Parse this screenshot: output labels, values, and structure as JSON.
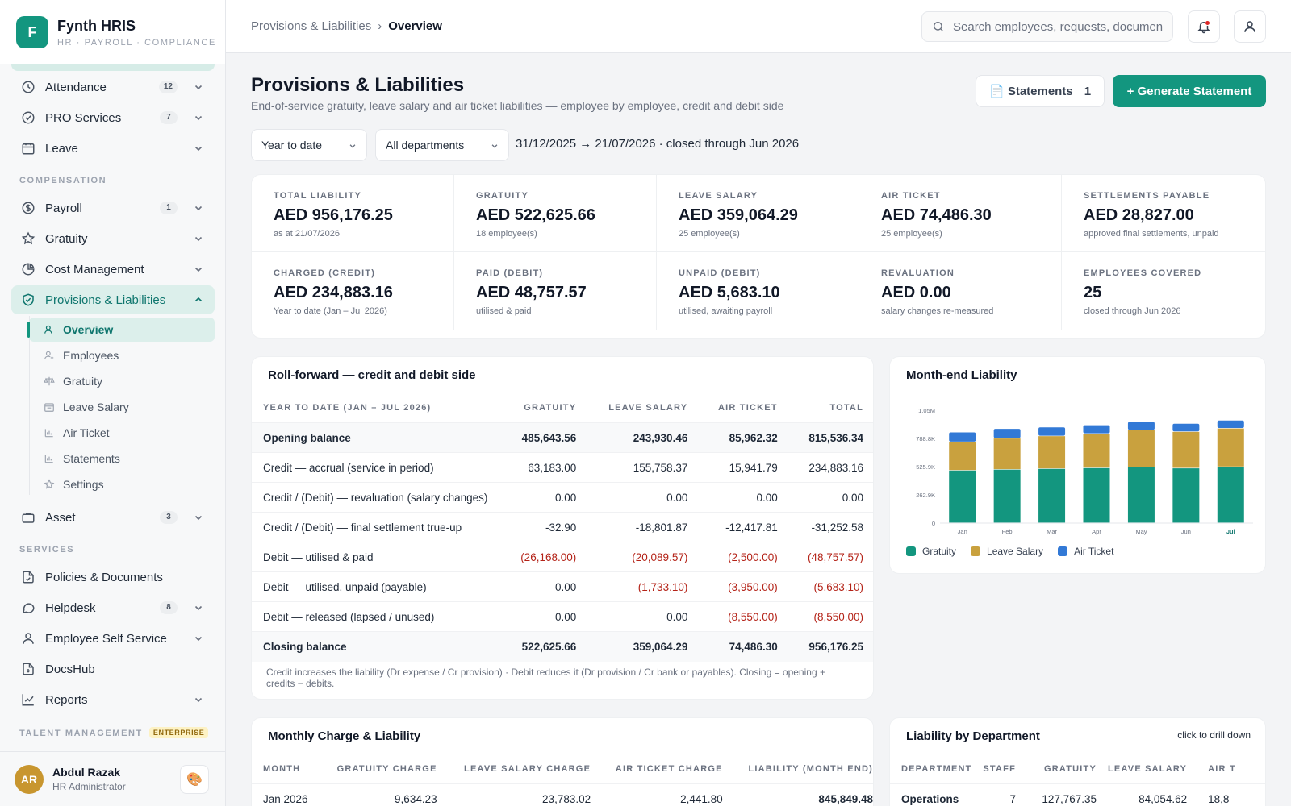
{
  "brand": {
    "logo_letter": "F",
    "name": "Fynth HRIS",
    "subtitle": "HR · PAYROLL · COMPLIANCE"
  },
  "sidebar": {
    "items": [
      {
        "label": "Attendance",
        "badge": "12",
        "icon": "clock-icon"
      },
      {
        "label": "PRO Services",
        "badge": "7",
        "icon": "check-circle-icon"
      },
      {
        "label": "Leave",
        "icon": "calendar-icon"
      },
      {
        "label": "Payroll",
        "badge": "1",
        "icon": "dollar-icon"
      },
      {
        "label": "Gratuity",
        "icon": "star-icon"
      },
      {
        "label": "Cost Management",
        "icon": "pie-icon"
      },
      {
        "label": "Provisions & Liabilities",
        "icon": "shield-check-icon",
        "active": true
      },
      {
        "label": "Asset",
        "badge": "3",
        "icon": "briefcase-icon"
      },
      {
        "label": "Policies & Documents",
        "icon": "file-check-icon"
      },
      {
        "label": "Helpdesk",
        "badge": "8",
        "icon": "chat-icon"
      },
      {
        "label": "Employee Self Service",
        "icon": "user-icon"
      },
      {
        "label": "DocsHub",
        "icon": "file-icon"
      },
      {
        "label": "Reports",
        "icon": "chart-line-icon"
      }
    ],
    "sections": {
      "compensation": "COMPENSATION",
      "services": "SERVICES",
      "talent": "TALENT MANAGEMENT",
      "talent_badge": "ENTERPRISE"
    },
    "subitems": [
      {
        "label": "Overview",
        "active": true
      },
      {
        "label": "Employees"
      },
      {
        "label": "Gratuity"
      },
      {
        "label": "Leave Salary"
      },
      {
        "label": "Air Ticket"
      },
      {
        "label": "Statements"
      },
      {
        "label": "Settings"
      }
    ],
    "user": {
      "initials": "AR",
      "name": "Abdul Razak",
      "role": "HR Administrator"
    }
  },
  "topbar": {
    "breadcrumb": [
      "Provisions & Liabilities",
      "Overview"
    ],
    "search_placeholder": "Search employees, requests, documents"
  },
  "page": {
    "title": "Provisions & Liabilities",
    "subtitle": "End-of-service gratuity, leave salary and air ticket liabilities — employee by employee, credit and debit side",
    "statements_label": "📄 Statements",
    "statements_count": "1",
    "generate_label": "+ Generate Statement",
    "period_select": "Year to date",
    "dept_select": "All departments",
    "range_text": "31/12/2025 → 21/07/2026 · closed through Jun 2026"
  },
  "kpis": [
    {
      "label": "TOTAL LIABILITY",
      "value": "AED 956,176.25",
      "sub": "as at 21/07/2026"
    },
    {
      "label": "GRATUITY",
      "value": "AED 522,625.66",
      "sub": "18 employee(s)"
    },
    {
      "label": "LEAVE SALARY",
      "value": "AED 359,064.29",
      "sub": "25 employee(s)"
    },
    {
      "label": "AIR TICKET",
      "value": "AED 74,486.30",
      "sub": "25 employee(s)"
    },
    {
      "label": "SETTLEMENTS PAYABLE",
      "value": "AED 28,827.00",
      "sub": "approved final settlements, unpaid"
    },
    {
      "label": "CHARGED (CREDIT)",
      "value": "AED 234,883.16",
      "sub": "Year to date (Jan – Jul 2026)"
    },
    {
      "label": "PAID (DEBIT)",
      "value": "AED 48,757.57",
      "sub": "utilised & paid"
    },
    {
      "label": "UNPAID (DEBIT)",
      "value": "AED 5,683.10",
      "sub": "utilised, awaiting payroll"
    },
    {
      "label": "REVALUATION",
      "value": "AED 0.00",
      "sub": "salary changes re-measured"
    },
    {
      "label": "EMPLOYEES COVERED",
      "value": "25",
      "sub": "closed through Jun 2026"
    }
  ],
  "rollforward": {
    "title": "Roll-forward — credit and debit side",
    "headers": [
      "YEAR TO DATE (JAN – JUL 2026)",
      "GRATUITY",
      "LEAVE SALARY",
      "AIR TICKET",
      "TOTAL"
    ],
    "rows": [
      {
        "label": "Opening balance",
        "cells": [
          "485,643.56",
          "243,930.46",
          "85,962.32",
          "815,536.34"
        ],
        "bold": true
      },
      {
        "label": "Credit — accrual (service in period)",
        "cells": [
          "63,183.00",
          "155,758.37",
          "15,941.79",
          "234,883.16"
        ]
      },
      {
        "label": "Credit / (Debit) — revaluation (salary changes)",
        "cells": [
          "0.00",
          "0.00",
          "0.00",
          "0.00"
        ]
      },
      {
        "label": "Credit / (Debit) — final settlement true-up",
        "cells": [
          "-32.90",
          "-18,801.87",
          "-12,417.81",
          "-31,252.58"
        ]
      },
      {
        "label": "Debit — utilised & paid",
        "cells": [
          "(26,168.00)",
          "(20,089.57)",
          "(2,500.00)",
          "(48,757.57)"
        ]
      },
      {
        "label": "Debit — utilised, unpaid (payable)",
        "cells": [
          "0.00",
          "(1,733.10)",
          "(3,950.00)",
          "(5,683.10)"
        ]
      },
      {
        "label": "Debit — released (lapsed / unused)",
        "cells": [
          "0.00",
          "0.00",
          "(8,550.00)",
          "(8,550.00)"
        ]
      },
      {
        "label": "Closing balance",
        "cells": [
          "522,625.66",
          "359,064.29",
          "74,486.30",
          "956,176.25"
        ],
        "bold": true
      }
    ],
    "footnote": "Credit increases the liability (Dr expense / Cr provision) · Debit reduces it (Dr provision / Cr bank or payables). Closing = opening + credits − debits."
  },
  "chart_panel": {
    "title": "Month-end Liability"
  },
  "chart_data": {
    "type": "bar",
    "stacked": true,
    "categories": [
      "Jan",
      "Feb",
      "Mar",
      "Apr",
      "May",
      "Jun",
      "Jul"
    ],
    "y_ticks": [
      "0",
      "262.9K",
      "525.9K",
      "788.8K",
      "1.05M"
    ],
    "ylim": [
      0,
      1051600
    ],
    "highlight_category": "Jul",
    "series": [
      {
        "name": "Gratuity",
        "color": "#13967f",
        "values": [
          490000,
          498000,
          505000,
          512000,
          520000,
          510000,
          522626
        ]
      },
      {
        "name": "Leave Salary",
        "color": "#c9a13e",
        "values": [
          265000,
          290000,
          305000,
          320000,
          345000,
          340000,
          359064
        ]
      },
      {
        "name": "Air Ticket",
        "color": "#3279d6",
        "values": [
          90000,
          90000,
          82000,
          80000,
          78000,
          76000,
          74486
        ]
      }
    ],
    "legend_position": "bottom-left",
    "grid": false
  },
  "monthly": {
    "title": "Monthly Charge & Liability",
    "headers": [
      "MONTH",
      "GRATUITY CHARGE",
      "LEAVE SALARY CHARGE",
      "AIR TICKET CHARGE",
      "LIABILITY (MONTH END)"
    ],
    "rows": [
      {
        "cells": [
          "Jan 2026",
          "9,634.23",
          "23,783.02",
          "2,441.80",
          "845,849.48"
        ]
      }
    ]
  },
  "department": {
    "title": "Liability by Department",
    "hint": "click to drill down",
    "headers": [
      "DEPARTMENT",
      "STAFF",
      "GRATUITY",
      "LEAVE SALARY",
      "AIR T"
    ],
    "rows": [
      {
        "cells": [
          "Operations",
          "7",
          "127,767.35",
          "84,054.62",
          "18,8"
        ]
      }
    ]
  }
}
